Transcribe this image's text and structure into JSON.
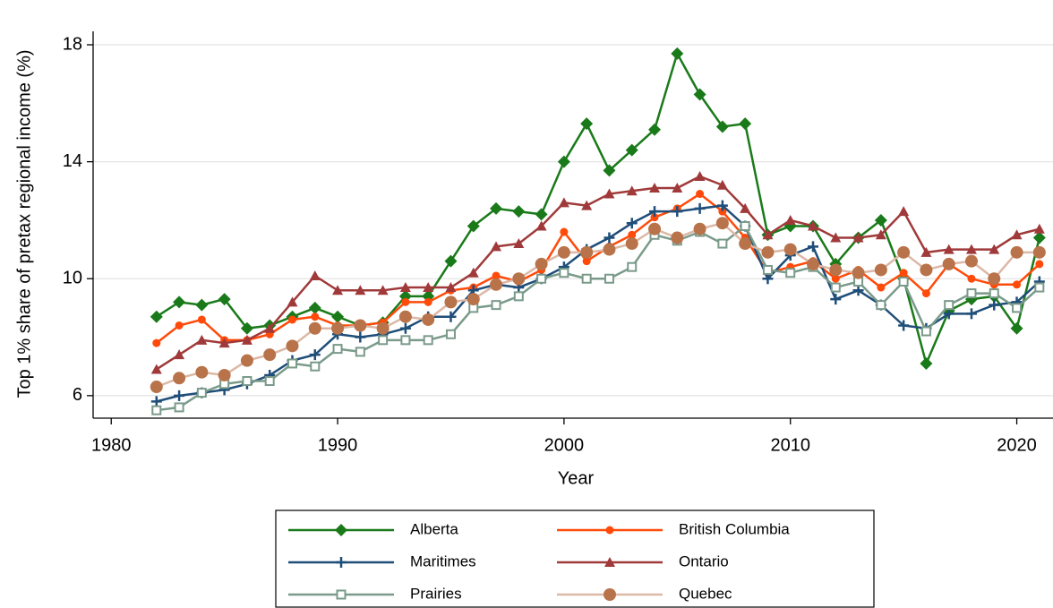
{
  "chart_data": {
    "type": "line",
    "x_label": "Year",
    "y_label": "Top 1% share of pretax regional income (%)",
    "x": [
      1982,
      1983,
      1984,
      1985,
      1986,
      1987,
      1988,
      1989,
      1990,
      1991,
      1992,
      1993,
      1994,
      1995,
      1996,
      1997,
      1998,
      1999,
      2000,
      2001,
      2002,
      2003,
      2004,
      2005,
      2006,
      2007,
      2008,
      2009,
      2010,
      2011,
      2012,
      2013,
      2014,
      2015,
      2016,
      2017,
      2018,
      2019,
      2020,
      2021
    ],
    "xlim": [
      1979.2,
      2021.6
    ],
    "xticks": [
      1980,
      1990,
      2000,
      2010,
      2020
    ],
    "ylim": [
      5.23,
      18.46
    ],
    "yticks": [
      6,
      10,
      14,
      18
    ],
    "grid": true,
    "series": [
      {
        "name": "Alberta",
        "color": "#1a7a1a",
        "marker": "diamond",
        "marker_color": "#1a7a1a",
        "values": [
          8.7,
          9.2,
          9.1,
          9.3,
          8.3,
          8.4,
          8.7,
          9.0,
          8.7,
          8.4,
          8.5,
          9.4,
          9.4,
          10.6,
          11.8,
          12.4,
          12.3,
          12.2,
          14.0,
          15.3,
          13.7,
          14.4,
          15.1,
          17.7,
          16.3,
          15.2,
          15.3,
          11.5,
          11.8,
          11.8,
          10.5,
          11.4,
          12.0,
          10.0,
          7.1,
          8.9,
          9.3,
          9.4,
          8.3,
          11.4
        ]
      },
      {
        "name": "British Columbia",
        "color": "#ff4a0a",
        "marker": "circle",
        "marker_color": "#ff4a0a",
        "values": [
          7.8,
          8.4,
          8.6,
          7.9,
          7.9,
          8.1,
          8.6,
          8.7,
          8.4,
          8.4,
          8.5,
          9.2,
          9.2,
          9.6,
          9.7,
          10.1,
          9.9,
          10.3,
          11.6,
          10.6,
          11.1,
          11.5,
          12.1,
          12.4,
          12.9,
          12.3,
          11.4,
          10.2,
          10.4,
          10.6,
          10.0,
          10.3,
          9.7,
          10.2,
          9.5,
          10.5,
          10.0,
          9.8,
          9.8,
          10.5
        ]
      },
      {
        "name": "Maritimes",
        "color": "#1f4e79",
        "marker": "plus",
        "marker_color": "#1f4e79",
        "values": [
          5.8,
          6.0,
          6.1,
          6.2,
          6.4,
          6.7,
          7.2,
          7.4,
          8.1,
          8.0,
          8.1,
          8.3,
          8.7,
          8.7,
          9.6,
          9.8,
          9.7,
          10.0,
          10.4,
          11.0,
          11.4,
          11.9,
          12.3,
          12.3,
          12.4,
          12.5,
          11.8,
          10.0,
          10.8,
          11.1,
          9.3,
          9.6,
          9.1,
          8.4,
          8.3,
          8.8,
          8.8,
          9.1,
          9.2,
          9.9
        ]
      },
      {
        "name": "Ontario",
        "color": "#a03a3a",
        "marker": "triangle",
        "marker_color": "#a03a3a",
        "values": [
          6.9,
          7.4,
          7.9,
          7.8,
          7.9,
          8.3,
          9.2,
          10.1,
          9.6,
          9.6,
          9.6,
          9.7,
          9.7,
          9.7,
          10.2,
          11.1,
          11.2,
          11.8,
          12.6,
          12.5,
          12.9,
          13.0,
          13.1,
          13.1,
          13.5,
          13.2,
          12.4,
          11.5,
          12.0,
          11.8,
          11.4,
          11.4,
          11.5,
          12.3,
          10.9,
          11.0,
          11.0,
          11.0,
          11.5,
          11.7
        ]
      },
      {
        "name": "Prairies",
        "color": "#7a9a8a",
        "marker": "square",
        "marker_color": "#7a9a8a",
        "values": [
          5.5,
          5.6,
          6.1,
          6.4,
          6.5,
          6.5,
          7.1,
          7.0,
          7.6,
          7.5,
          7.9,
          7.9,
          7.9,
          8.1,
          9.0,
          9.1,
          9.4,
          10.0,
          10.2,
          10.0,
          10.0,
          10.4,
          11.5,
          11.3,
          11.6,
          11.2,
          11.8,
          10.3,
          10.2,
          10.4,
          9.7,
          9.9,
          9.1,
          9.9,
          8.2,
          9.1,
          9.5,
          9.5,
          9.0,
          9.7
        ]
      },
      {
        "name": "Quebec",
        "color": "#dcb8a6",
        "marker": "circle-large",
        "marker_color": "#b8734a",
        "values": [
          6.3,
          6.6,
          6.8,
          6.7,
          7.2,
          7.4,
          7.7,
          8.3,
          8.3,
          8.4,
          8.3,
          8.7,
          8.6,
          9.2,
          9.3,
          9.8,
          10.0,
          10.5,
          10.9,
          10.9,
          11.0,
          11.2,
          11.7,
          11.4,
          11.7,
          11.9,
          11.2,
          10.9,
          11.0,
          10.5,
          10.3,
          10.2,
          10.3,
          10.9,
          10.3,
          10.5,
          10.6,
          10.0,
          10.9,
          10.9
        ]
      }
    ]
  }
}
